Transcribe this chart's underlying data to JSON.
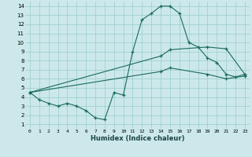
{
  "xlabel": "Humidex (Indice chaleur)",
  "background_color": "#cce8ea",
  "grid_color": "#99cccc",
  "line_color": "#1a6b5a",
  "xlim": [
    -0.5,
    23.5
  ],
  "ylim": [
    0.5,
    14.5
  ],
  "xticks": [
    0,
    1,
    2,
    3,
    4,
    5,
    6,
    7,
    8,
    9,
    10,
    11,
    12,
    13,
    14,
    15,
    16,
    17,
    18,
    19,
    20,
    21,
    22,
    23
  ],
  "yticks": [
    1,
    2,
    3,
    4,
    5,
    6,
    7,
    8,
    9,
    10,
    11,
    12,
    13,
    14
  ],
  "line1_x": [
    0,
    1,
    2,
    3,
    4,
    5,
    6,
    7,
    8,
    9,
    10,
    11,
    12,
    13,
    14,
    15,
    16,
    17,
    18,
    19,
    20,
    21,
    22,
    23
  ],
  "line1_y": [
    4.5,
    3.7,
    3.3,
    3.0,
    3.3,
    3.0,
    2.5,
    1.7,
    1.5,
    4.5,
    4.2,
    9.0,
    12.5,
    13.2,
    14.0,
    14.0,
    13.2,
    10.0,
    9.5,
    8.3,
    7.8,
    6.5,
    6.2,
    6.5
  ],
  "line2_x": [
    0,
    14,
    15,
    19,
    21,
    23
  ],
  "line2_y": [
    4.5,
    8.5,
    9.2,
    9.5,
    9.3,
    6.5
  ],
  "line3_x": [
    0,
    14,
    15,
    19,
    21,
    23
  ],
  "line3_y": [
    4.5,
    6.8,
    7.2,
    6.5,
    6.0,
    6.3
  ]
}
